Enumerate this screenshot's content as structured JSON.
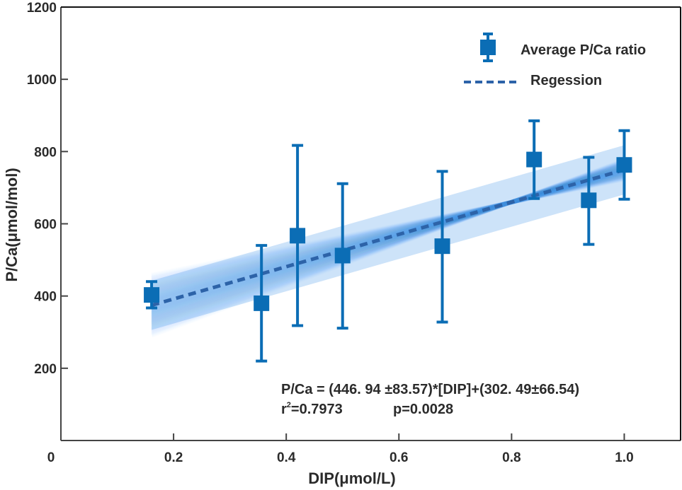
{
  "chart_data": {
    "type": "scatter",
    "title": "",
    "xlabel": "DIP(μmol/L)",
    "ylabel": "P/Ca(μmol/mol)",
    "xlim": [
      0,
      1.1
    ],
    "ylim": [
      0,
      1200
    ],
    "xticks": [
      0,
      0.2,
      0.4,
      0.6,
      0.8,
      1.0
    ],
    "xtick_labels": [
      "0",
      "0.2",
      "0.4",
      "0.6",
      "0.8",
      "1.0"
    ],
    "yticks": [
      200,
      400,
      600,
      800,
      1000,
      1200
    ],
    "ytick_labels": [
      "200",
      "400",
      "600",
      "800",
      "1000",
      "1200"
    ],
    "grid": false,
    "legend_position": "top-right",
    "series": [
      {
        "name": "Average P/Ca ratio",
        "kind": "errorbar",
        "marker": "square",
        "color": "#0b6db5",
        "x": [
          0.161,
          0.356,
          0.42,
          0.5,
          0.677,
          0.84,
          0.937,
          1.0
        ],
        "y": [
          403,
          380,
          567,
          512,
          538,
          778,
          665,
          763
        ],
        "err_low": [
          367,
          220,
          318,
          311,
          328,
          670,
          543,
          668
        ],
        "err_high": [
          440,
          540,
          817,
          711,
          745,
          885,
          784,
          858
        ]
      },
      {
        "name": "Regession",
        "kind": "line",
        "style": "dashed",
        "color": "#2d63a8",
        "slope": 446.94,
        "intercept": 302.49,
        "x_range": [
          0.161,
          1.0
        ]
      }
    ],
    "confidence_band": {
      "color": "#4a9be8",
      "slope_err": 83.57,
      "intercept_err": 66.54,
      "x_range": [
        0.161,
        1.0
      ]
    },
    "annotations": [
      "P/Ca = (446. 94 ±83.57)*[DIP]+(302. 49±66.54)",
      "r²=0.7973       p=0.0028"
    ],
    "annotation_r2_prefix": "r",
    "annotation_r2_sup": "2",
    "annotation_r2_rest": "=0.7973",
    "annotation_p": "p=0.0028"
  }
}
